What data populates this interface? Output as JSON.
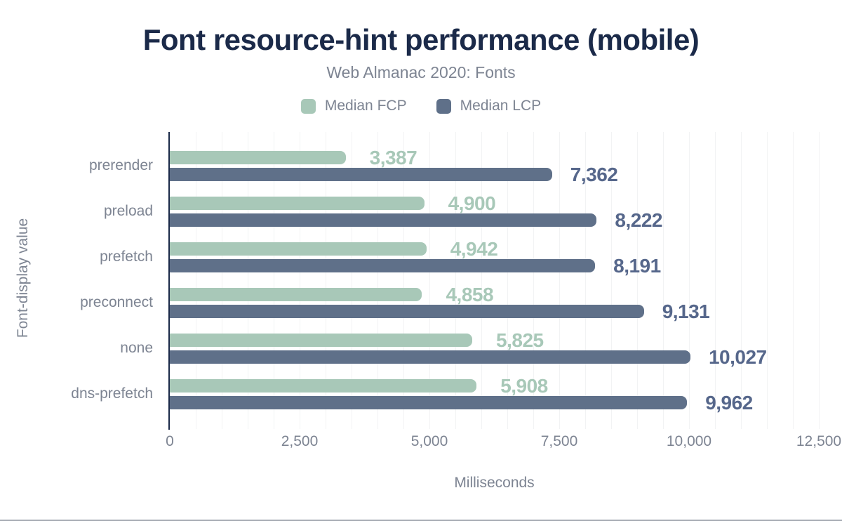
{
  "header": {
    "title": "Font resource-hint performance (mobile)",
    "subtitle": "Web Almanac 2020: Fonts"
  },
  "legend": {
    "items": [
      {
        "label": "Median FCP",
        "color": "#a8c8b8"
      },
      {
        "label": "Median LCP",
        "color": "#5f7089"
      }
    ]
  },
  "axes": {
    "x_title": "Milliseconds",
    "y_title": "Font-display value"
  },
  "chart_data": {
    "type": "bar",
    "orientation": "horizontal",
    "title": "Font resource-hint performance (mobile)",
    "subtitle": "Web Almanac 2020: Fonts",
    "xlabel": "Milliseconds",
    "ylabel": "Font-display value",
    "xlim": [
      0,
      12500
    ],
    "xticks": [
      0,
      2500,
      5000,
      7500,
      10000,
      12500
    ],
    "xtick_labels": [
      "0",
      "2,500",
      "5,000",
      "7,500",
      "10,000",
      "12,500"
    ],
    "grid": "vertical minor gridlines every 500 ms",
    "legend_position": "top center",
    "categories": [
      "prerender",
      "preload",
      "prefetch",
      "preconnect",
      "none",
      "dns-prefetch"
    ],
    "series": [
      {
        "name": "Median FCP",
        "color": "#a8c8b8",
        "values": [
          3387,
          4900,
          4942,
          4858,
          5825,
          5908
        ],
        "labels": [
          "3,387",
          "4,900",
          "4,942",
          "4,858",
          "5,825",
          "5,908"
        ]
      },
      {
        "name": "Median LCP",
        "color": "#5f7089",
        "values": [
          7362,
          8222,
          8191,
          9131,
          10027,
          9962
        ],
        "labels": [
          "7,362",
          "8,222",
          "8,191",
          "9,131",
          "10,027",
          "9,962"
        ]
      }
    ]
  },
  "colors": {
    "title_text": "#1b2a49",
    "muted_text": "#7d8492",
    "fcp_bar": "#a8c8b8",
    "lcp_bar": "#5f7089",
    "fcp_value_label": "#a8c8b8",
    "lcp_value_label": "#56678b",
    "axis_line": "#1b2a49",
    "gridline": "#f2f3f4",
    "background": "#ffffff"
  }
}
